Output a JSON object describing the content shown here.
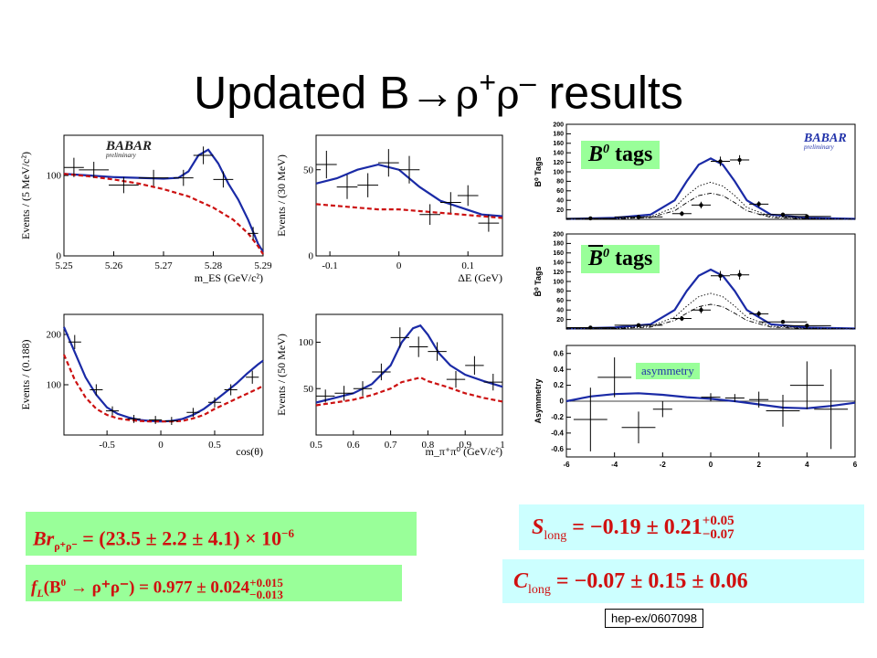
{
  "slide": {
    "title_prefix": "Updated B",
    "title_arrow": "→",
    "title_rho": "ρ",
    "title_plus": "+",
    "title_minus": "–",
    "title_suffix": "results",
    "reference": "hep-ex/0607098",
    "colors": {
      "fit": "#1a2aa6",
      "background": "#cc1111",
      "green_box": "#99ff99",
      "cyan_box": "#ccffff"
    },
    "br_result": {
      "label": "Br",
      "sub": "ρ⁺ρ⁻",
      "text": " = (23.5 ± 2.2 ± 4.1)  × 10",
      "exp": "−6"
    },
    "fl_result": {
      "label": "f",
      "sub": "L",
      "arg": "(B",
      "arg_sup": "0",
      "arg_rest": " → ρ⁺ρ⁻) = 0.977 ± 0.024",
      "err_up": "+0.015",
      "err_dn": "−0.013"
    },
    "s_result": {
      "label": "S",
      "sub": "long",
      "text": " = −0.19 ± 0.21",
      "err_up": "+0.05",
      "err_dn": "−0.07"
    },
    "c_result": {
      "label": "C",
      "sub": "long",
      "text": " = −0.07 ± 0.15 ± 0.06"
    },
    "tag_b0": {
      "text": "B",
      "sup": "0",
      "rest": " tags"
    },
    "tag_b0bar": {
      "text": "B",
      "sup": "0",
      "rest": " tags"
    },
    "asym_label": "asymmetry",
    "babar_logo": "BABAR",
    "preliminary": "preliminary"
  },
  "chart_data": [
    {
      "type": "line",
      "id": "mes",
      "xlabel": "m_ES (GeV/c²)",
      "ylabel": "Events / (5 MeV/c²)",
      "xlim": [
        5.25,
        5.29
      ],
      "ylim": [
        0,
        150
      ],
      "xticks": [
        "5.25",
        "5.26",
        "5.27",
        "5.28",
        "5.29"
      ],
      "yticks": [
        "0",
        "100"
      ],
      "points": {
        "x": [
          5.252,
          5.256,
          5.262,
          5.268,
          5.274,
          5.278,
          5.282,
          5.288
        ],
        "y": [
          110,
          107,
          88,
          97,
          97,
          125,
          95,
          28
        ],
        "ex": [
          0.002,
          0.003,
          0.003,
          0.003,
          0.002,
          0.002,
          0.002,
          0.001
        ],
        "ey": [
          12,
          10,
          10,
          10,
          10,
          11,
          10,
          8
        ]
      },
      "series": [
        {
          "name": "fit",
          "style": "solid",
          "x": [
            5.25,
            5.255,
            5.26,
            5.265,
            5.27,
            5.273,
            5.275,
            5.277,
            5.279,
            5.281,
            5.283,
            5.285,
            5.287,
            5.289,
            5.29
          ],
          "y": [
            102,
            100,
            98,
            97,
            96,
            97,
            105,
            125,
            132,
            115,
            90,
            70,
            45,
            15,
            5
          ]
        },
        {
          "name": "background",
          "style": "dashed",
          "x": [
            5.25,
            5.255,
            5.26,
            5.265,
            5.27,
            5.275,
            5.28,
            5.284,
            5.287,
            5.289,
            5.29
          ],
          "y": [
            102,
            99,
            95,
            90,
            83,
            74,
            60,
            45,
            28,
            12,
            2
          ]
        }
      ]
    },
    {
      "type": "line",
      "id": "de",
      "xlabel": "ΔE (GeV)",
      "ylabel": "Events / (30 MeV)",
      "xlim": [
        -0.12,
        0.15
      ],
      "ylim": [
        0,
        70
      ],
      "xticks": [
        "-0.1",
        "0",
        "0.1"
      ],
      "yticks": [
        "0",
        "50"
      ],
      "points": {
        "x": [
          -0.105,
          -0.075,
          -0.045,
          -0.015,
          0.015,
          0.045,
          0.075,
          0.1,
          0.13
        ],
        "y": [
          53,
          40,
          41,
          54,
          50,
          24,
          31,
          35,
          19
        ],
        "ex": [
          0.015,
          0.015,
          0.015,
          0.015,
          0.015,
          0.015,
          0.015,
          0.015,
          0.015
        ],
        "ey": [
          8,
          7,
          7,
          8,
          8,
          6,
          6,
          6,
          5
        ]
      },
      "series": [
        {
          "name": "fit",
          "style": "solid",
          "x": [
            -0.12,
            -0.09,
            -0.06,
            -0.03,
            0,
            0.03,
            0.06,
            0.09,
            0.12,
            0.15
          ],
          "y": [
            42,
            45,
            50,
            53,
            50,
            40,
            32,
            28,
            24,
            23
          ]
        },
        {
          "name": "background",
          "style": "dashed",
          "x": [
            -0.12,
            -0.09,
            -0.06,
            -0.03,
            0,
            0.03,
            0.06,
            0.09,
            0.12,
            0.15
          ],
          "y": [
            30,
            29,
            28,
            27,
            27,
            26,
            25,
            24,
            23,
            22
          ]
        }
      ]
    },
    {
      "type": "line",
      "id": "cos",
      "xlabel": "cos(θ)",
      "ylabel": "Events / (0.188)",
      "xlim": [
        -0.9,
        0.95
      ],
      "ylim": [
        0,
        240
      ],
      "xticks": [
        "-0.5",
        "0",
        "0.5"
      ],
      "yticks": [
        "100",
        "200"
      ],
      "points": {
        "x": [
          -0.8,
          -0.6,
          -0.45,
          -0.25,
          -0.05,
          0.1,
          0.3,
          0.5,
          0.65,
          0.85
        ],
        "y": [
          185,
          90,
          48,
          32,
          30,
          28,
          45,
          65,
          90,
          115
        ],
        "ex": [
          0.06,
          0.06,
          0.06,
          0.06,
          0.06,
          0.06,
          0.06,
          0.06,
          0.06,
          0.06
        ],
        "ey": [
          14,
          11,
          9,
          8,
          8,
          8,
          9,
          10,
          11,
          13
        ]
      },
      "series": [
        {
          "name": "fit",
          "style": "solid",
          "x": [
            -0.9,
            -0.8,
            -0.7,
            -0.6,
            -0.5,
            -0.4,
            -0.3,
            -0.2,
            -0.1,
            0,
            0.1,
            0.2,
            0.3,
            0.4,
            0.5,
            0.6,
            0.7,
            0.8,
            0.9,
            0.95
          ],
          "y": [
            215,
            165,
            115,
            80,
            55,
            42,
            35,
            30,
            28,
            27,
            28,
            32,
            40,
            52,
            68,
            85,
            102,
            122,
            140,
            148
          ]
        },
        {
          "name": "background",
          "style": "dashed",
          "x": [
            -0.9,
            -0.8,
            -0.7,
            -0.6,
            -0.5,
            -0.4,
            -0.3,
            -0.2,
            -0.1,
            0,
            0.1,
            0.2,
            0.3,
            0.4,
            0.5,
            0.6,
            0.7,
            0.8,
            0.9,
            0.95
          ],
          "y": [
            160,
            110,
            75,
            52,
            40,
            33,
            30,
            28,
            27,
            27,
            27,
            28,
            33,
            40,
            52,
            62,
            72,
            82,
            92,
            98
          ]
        }
      ]
    },
    {
      "type": "line",
      "id": "mrho",
      "xlabel": "m_π⁺π⁰ (GeV/c²)",
      "ylabel": "Events / (50 MeV)",
      "xlim": [
        0.5,
        1.0
      ],
      "ylim": [
        0,
        130
      ],
      "xticks": [
        "0.5",
        "0.6",
        "0.7",
        "0.8",
        "0.9",
        "1"
      ],
      "yticks": [
        "50",
        "100"
      ],
      "points": {
        "x": [
          0.525,
          0.575,
          0.625,
          0.675,
          0.725,
          0.775,
          0.825,
          0.875,
          0.925,
          0.975
        ],
        "y": [
          42,
          45,
          50,
          68,
          105,
          95,
          90,
          60,
          75,
          57
        ],
        "ex": [
          0.025,
          0.025,
          0.025,
          0.025,
          0.025,
          0.025,
          0.025,
          0.025,
          0.025,
          0.025
        ],
        "ey": [
          7,
          8,
          8,
          9,
          11,
          11,
          10,
          9,
          10,
          9
        ]
      },
      "series": [
        {
          "name": "fit",
          "style": "solid",
          "x": [
            0.5,
            0.55,
            0.6,
            0.65,
            0.7,
            0.73,
            0.76,
            0.78,
            0.8,
            0.83,
            0.86,
            0.9,
            0.95,
            1.0
          ],
          "y": [
            35,
            40,
            45,
            55,
            75,
            100,
            115,
            118,
            108,
            88,
            75,
            65,
            58,
            52
          ]
        },
        {
          "name": "background",
          "style": "dashed",
          "x": [
            0.5,
            0.55,
            0.6,
            0.65,
            0.7,
            0.73,
            0.76,
            0.78,
            0.8,
            0.85,
            0.9,
            0.95,
            1.0
          ],
          "y": [
            32,
            35,
            38,
            43,
            50,
            57,
            60,
            62,
            58,
            52,
            45,
            40,
            36
          ]
        }
      ]
    },
    {
      "type": "line",
      "id": "b0",
      "ylabel": "B⁰ Tags",
      "xlim": [
        -6,
        6
      ],
      "ylim": [
        0,
        200
      ],
      "yticks": [
        "20",
        "40",
        "60",
        "80",
        "100",
        "120",
        "140",
        "160",
        "180",
        "200"
      ],
      "points": {
        "x": [
          -5,
          -3,
          -1.2,
          -0.4,
          0.4,
          1.2,
          2,
          3,
          4
        ],
        "y": [
          2,
          5,
          12,
          30,
          122,
          125,
          32,
          10,
          6
        ],
        "ex": [
          1,
          1,
          0.4,
          0.4,
          0.4,
          0.4,
          0.4,
          1,
          1
        ],
        "ey": [
          2,
          3,
          5,
          7,
          10,
          10,
          6,
          4,
          3
        ]
      },
      "series": [
        {
          "name": "fit",
          "style": "solid",
          "x": [
            -6,
            -4,
            -2.5,
            -1.5,
            -1,
            -0.5,
            0,
            0.5,
            1,
            1.5,
            2.5,
            4,
            6
          ],
          "y": [
            1,
            3,
            10,
            40,
            80,
            115,
            128,
            115,
            80,
            40,
            10,
            3,
            1
          ]
        },
        {
          "name": "component1",
          "style": "dotted",
          "x": [
            -6,
            -4,
            -2.5,
            -1.5,
            -1,
            -0.5,
            0,
            0.5,
            1,
            1.5,
            2.5,
            4,
            6
          ],
          "y": [
            1,
            2,
            6,
            25,
            50,
            70,
            78,
            70,
            50,
            25,
            6,
            2,
            1
          ]
        },
        {
          "name": "component2",
          "style": "dashdot",
          "x": [
            -6,
            -4,
            -2.5,
            -1.5,
            -1,
            -0.5,
            0,
            0.5,
            1,
            1.5,
            2.5,
            4,
            6
          ],
          "y": [
            0,
            1,
            4,
            18,
            35,
            50,
            55,
            50,
            35,
            18,
            4,
            1,
            0
          ]
        }
      ]
    },
    {
      "type": "line",
      "id": "b0bar",
      "ylabel": "B̄⁰ Tags",
      "xlim": [
        -6,
        6
      ],
      "ylim": [
        0,
        200
      ],
      "yticks": [
        "20",
        "40",
        "60",
        "80",
        "100",
        "120",
        "140",
        "160",
        "180",
        "200"
      ],
      "points": {
        "x": [
          -5,
          -3,
          -1.2,
          -0.4,
          0.4,
          1.2,
          2,
          3,
          4
        ],
        "y": [
          3,
          8,
          22,
          40,
          112,
          114,
          32,
          15,
          7
        ],
        "ex": [
          1,
          1,
          0.4,
          0.4,
          0.4,
          0.4,
          0.4,
          1,
          1
        ],
        "ey": [
          2,
          3,
          5,
          7,
          10,
          10,
          6,
          4,
          3
        ]
      },
      "series": [
        {
          "name": "fit",
          "style": "solid",
          "x": [
            -6,
            -4,
            -2.5,
            -1.5,
            -1,
            -0.5,
            0,
            0.5,
            1,
            1.5,
            2.5,
            4,
            6
          ],
          "y": [
            1,
            3,
            10,
            40,
            80,
            112,
            125,
            112,
            80,
            40,
            10,
            3,
            1
          ]
        },
        {
          "name": "component1",
          "style": "dotted",
          "x": [
            -6,
            -4,
            -2.5,
            -1.5,
            -1,
            -0.5,
            0,
            0.5,
            1,
            1.5,
            2.5,
            4,
            6
          ],
          "y": [
            1,
            2,
            6,
            25,
            48,
            68,
            75,
            68,
            48,
            25,
            6,
            2,
            1
          ]
        },
        {
          "name": "component2",
          "style": "dashdot",
          "x": [
            -6,
            -4,
            -2.5,
            -1.5,
            -1,
            -0.5,
            0,
            0.5,
            1,
            1.5,
            2.5,
            4,
            6
          ],
          "y": [
            0,
            1,
            4,
            18,
            33,
            47,
            52,
            47,
            33,
            18,
            4,
            1,
            0
          ]
        }
      ]
    },
    {
      "type": "line",
      "id": "asym",
      "ylabel": "Asymmetry",
      "xlim": [
        -6,
        6
      ],
      "ylim": [
        -0.7,
        0.7
      ],
      "xticks": [
        "-6",
        "-4",
        "-2",
        "0",
        "2",
        "4",
        "6"
      ],
      "yticks": [
        "-0.6",
        "-0.4",
        "-0.2",
        "0",
        "0.2",
        "0.4",
        "0.6"
      ],
      "points": {
        "x": [
          -5,
          -4,
          -3,
          -2,
          0,
          1,
          2,
          3,
          4,
          5
        ],
        "y": [
          -0.23,
          0.3,
          -0.33,
          -0.1,
          0.05,
          0.04,
          0.02,
          -0.12,
          0.2,
          -0.1
        ],
        "ex": [
          0.7,
          0.7,
          0.7,
          0.4,
          0.4,
          0.4,
          0.4,
          0.7,
          0.7,
          0.7
        ],
        "ey": [
          0.4,
          0.25,
          0.2,
          0.1,
          0.05,
          0.05,
          0.1,
          0.2,
          0.3,
          0.5
        ],
        "error_only": [
          false,
          false,
          false,
          false,
          false,
          false,
          false,
          false,
          false,
          false
        ]
      },
      "series": [
        {
          "name": "fit",
          "style": "solid",
          "x": [
            -6,
            -5,
            -4,
            -3,
            -2,
            -1,
            0,
            1,
            2,
            3,
            4,
            5,
            6
          ],
          "y": [
            0.0,
            0.06,
            0.09,
            0.1,
            0.08,
            0.05,
            0.03,
            0.0,
            -0.04,
            -0.08,
            -0.09,
            -0.06,
            -0.02
          ]
        }
      ]
    }
  ]
}
